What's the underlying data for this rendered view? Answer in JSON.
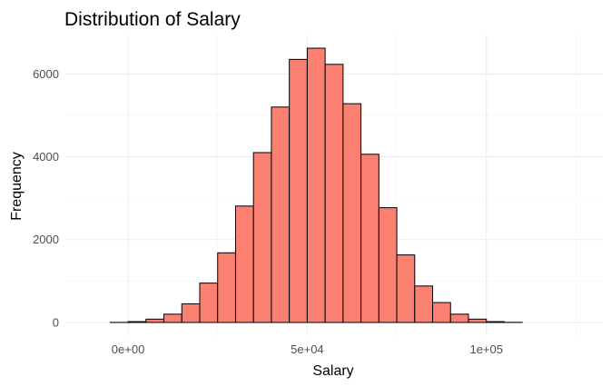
{
  "chart_data": {
    "type": "bar",
    "title": "Distribution of Salary",
    "xlabel": "Salary",
    "ylabel": "Frequency",
    "bin_width": 5000,
    "bins_start": [
      -15000,
      -10000,
      -5000,
      0,
      5000,
      10000,
      15000,
      20000,
      25000,
      30000,
      35000,
      40000,
      45000,
      50000,
      55000,
      60000,
      65000,
      70000,
      75000,
      80000,
      85000,
      90000,
      95000,
      100000,
      105000,
      110000,
      115000,
      120000,
      125000
    ],
    "values": [
      0,
      0,
      2,
      20,
      80,
      200,
      450,
      950,
      1680,
      2810,
      4100,
      5200,
      6350,
      6620,
      6230,
      5280,
      4060,
      2770,
      1630,
      880,
      480,
      200,
      80,
      20,
      3,
      0,
      0,
      0,
      0
    ],
    "xlim": [
      -17500,
      132500
    ],
    "ylim": [
      -330,
      6950
    ],
    "x_ticks": [
      0,
      50000,
      100000
    ],
    "x_tick_labels": [
      "0e+00",
      "5e+04",
      "1e+05"
    ],
    "y_ticks": [
      0,
      2000,
      4000,
      6000
    ],
    "y_tick_labels": [
      "0",
      "2000",
      "4000",
      "6000"
    ],
    "grid": true,
    "bar_fill": "#fa8072",
    "bar_outline": "#000000"
  }
}
